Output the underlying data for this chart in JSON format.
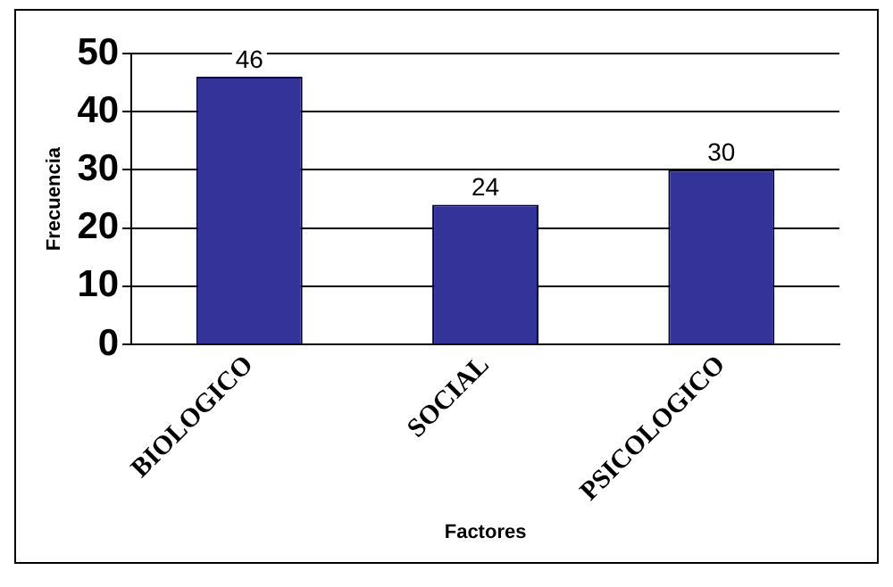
{
  "chart_data": {
    "type": "bar",
    "categories": [
      "BIOLOGICO",
      "SOCIAL",
      "PSICOLOGICO"
    ],
    "values": [
      46,
      24,
      30
    ],
    "color": "#333399",
    "xlabel": "Factores",
    "ylabel": "Frecuencia",
    "ylim": [
      0,
      50
    ],
    "yticks": [
      0,
      10,
      20,
      30,
      40,
      50
    ],
    "grid": "y",
    "data_labels": true,
    "legend": false
  }
}
